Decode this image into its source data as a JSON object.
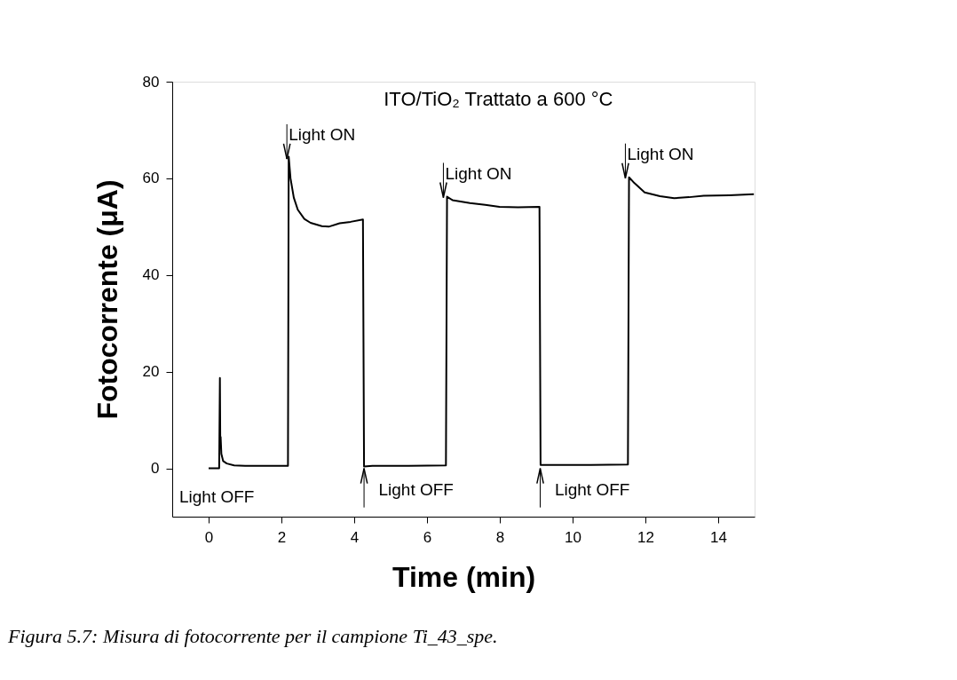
{
  "chart_data": {
    "type": "line",
    "title": "ITO/TiO₂   Trattato a 600 °C",
    "xlabel": "Time (min)",
    "ylabel": "Fotocorrente (μA)",
    "x": [
      0.0,
      0.29,
      0.31,
      0.32,
      0.33,
      0.35,
      0.4,
      0.5,
      0.7,
      1.0,
      1.5,
      2.0,
      2.18,
      2.2,
      2.25,
      2.34,
      2.45,
      2.63,
      2.8,
      3.11,
      3.3,
      3.6,
      3.9,
      4.24,
      4.27,
      4.5,
      5.5,
      6.52,
      6.55,
      6.7,
      7.18,
      7.6,
      7.99,
      8.5,
      9.09,
      9.12,
      9.5,
      10.5,
      11.52,
      11.55,
      11.7,
      11.98,
      12.4,
      12.79,
      13.2,
      13.6,
      14.3,
      14.98
    ],
    "series": [
      {
        "color": "#000000",
        "values": [
          0.0,
          0.0,
          18.7,
          6.0,
          6.5,
          3.0,
          1.5,
          1.0,
          0.6,
          0.5,
          0.5,
          0.5,
          0.5,
          64.5,
          60.0,
          56.0,
          53.5,
          51.6,
          50.8,
          50.1,
          50.0,
          50.7,
          51.0,
          51.5,
          0.4,
          0.5,
          0.5,
          0.6,
          56.2,
          55.5,
          54.9,
          54.5,
          54.1,
          54.0,
          54.1,
          0.7,
          0.7,
          0.7,
          0.8,
          60.2,
          59.0,
          57.1,
          56.3,
          55.9,
          56.1,
          56.4,
          56.5,
          56.7
        ]
      }
    ],
    "xlim": [
      -1,
      15
    ],
    "xticks": [
      0,
      2,
      4,
      6,
      8,
      10,
      12,
      14
    ],
    "ylim": [
      -10,
      80
    ],
    "yticks": [
      0,
      20,
      40,
      60,
      80
    ],
    "grid": false,
    "marker": "none",
    "line_style": "solid",
    "annotations": [
      {
        "text": "Light ON",
        "x": 2.15,
        "y": 64
      },
      {
        "text": "Light ON",
        "x": 6.45,
        "y": 56
      },
      {
        "text": "Light ON",
        "x": 11.45,
        "y": 60
      },
      {
        "text": "Light OFF",
        "x": 4.27,
        "y": 0
      },
      {
        "text": "Light OFF",
        "x": 9.11,
        "y": 0
      },
      "Light OFF",
      "Figura 5.7: Misura di fotocorrente per il campione Ti_43_spe."
    ]
  }
}
